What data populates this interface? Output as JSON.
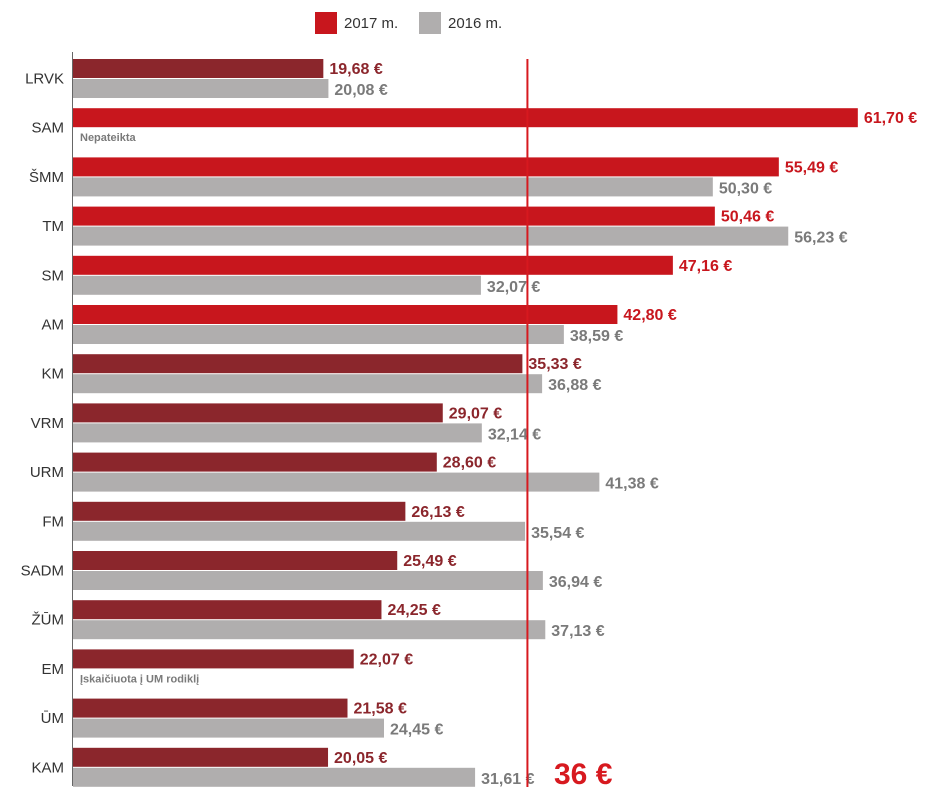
{
  "legend": {
    "items": [
      {
        "label": "2017 m.",
        "color": "#c8161d"
      },
      {
        "label": "2016 m.",
        "color": "#b0aeae"
      }
    ]
  },
  "chart_data": {
    "type": "bar",
    "orientation": "horizontal",
    "title": "",
    "xlabel": "",
    "ylabel": "",
    "grid": false,
    "legend_position": "top-center",
    "currency_suffix": " €",
    "categories": [
      "LRVK",
      "SAM",
      "ŠMM",
      "TM",
      "SM",
      "AM",
      "KM",
      "VRM",
      "URM",
      "FM",
      "SADM",
      "ŽŪM",
      "EM",
      "ŪM",
      "KAM"
    ],
    "series": [
      {
        "name": "2017 m.",
        "values": [
          19.68,
          61.7,
          55.49,
          50.46,
          47.16,
          42.8,
          35.33,
          29.07,
          28.6,
          26.13,
          25.49,
          24.25,
          22.07,
          21.58,
          20.05
        ],
        "labels": [
          "19,68 €",
          "61,70 €",
          "55,49 €",
          "50,46 €",
          "47,16 €",
          "42,80 €",
          "35,33 €",
          "29,07 €",
          "28,60 €",
          "26,13 €",
          "25,49 €",
          "24,25 €",
          "22,07 €",
          "21,58 €",
          "20,05 €"
        ],
        "colors": [
          "#8b262c",
          "#c8161d",
          "#c8161d",
          "#c8161d",
          "#c8161d",
          "#c8161d",
          "#8b262c",
          "#8b262c",
          "#8b262c",
          "#8b262c",
          "#8b262c",
          "#8b262c",
          "#8b262c",
          "#8b262c",
          "#8b262c"
        ],
        "label_colors": [
          "#8b262c",
          "#c8161d",
          "#c8161d",
          "#c8161d",
          "#c8161d",
          "#c8161d",
          "#8b262c",
          "#8b262c",
          "#8b262c",
          "#8b262c",
          "#8b262c",
          "#8b262c",
          "#8b262c",
          "#8b262c",
          "#8b262c"
        ]
      },
      {
        "name": "2016 m.",
        "values": [
          20.08,
          null,
          50.3,
          56.23,
          32.07,
          38.59,
          36.88,
          32.14,
          41.38,
          35.54,
          36.94,
          37.13,
          null,
          24.45,
          31.61
        ],
        "labels": [
          "20,08 €",
          "",
          "50,30 €",
          "56,23 €",
          "32,07 €",
          "38,59 €",
          "36,88 €",
          "32,14 €",
          "41,38 €",
          "35,54 €",
          "36,94 €",
          "37,13 €",
          "",
          "24,45 €",
          "31,61 €"
        ],
        "color": "#b0aeae",
        "label_color": "#7a7a7a"
      }
    ],
    "notes": [
      {
        "category": "SAM",
        "text": "Nepateikta"
      },
      {
        "category": "EM",
        "text": "Įskaičiuota į UM rodiklį"
      }
    ],
    "reference_line": {
      "value": 36,
      "label": "36 €",
      "color": "#d7191f"
    },
    "xlim": [
      0,
      62
    ]
  }
}
